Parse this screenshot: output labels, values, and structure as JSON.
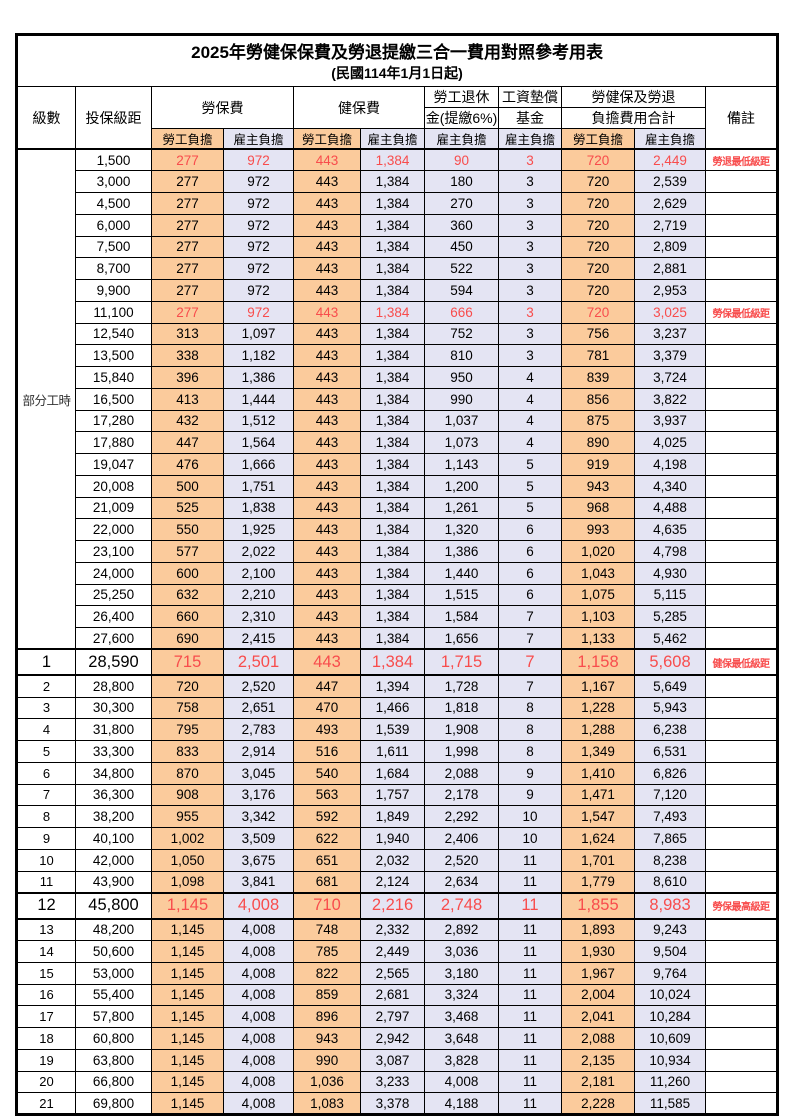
{
  "doc": {
    "title": "2025年勞健保保費及勞退提繳三合一費用對照參考用表",
    "subtitle": "(民國114年1月1日起)"
  },
  "colors": {
    "employee_column_bg": "#FBCB9C",
    "employer_column_bg": "#E4E4F3",
    "highlight_text": "#F84C4C",
    "border": "#000000"
  },
  "header": {
    "level": "級數",
    "bracket": "投保級距",
    "labor": "勞保費",
    "health": "健保費",
    "pension_line1": "勞工退休",
    "pension_line2": "金(提繳6%)",
    "wagefund_line1": "工資墊償",
    "wagefund_line2": "基金",
    "total_line1": "勞健保及勞退",
    "total_line2": "負擔費用合計",
    "note": "備註",
    "employee": "勞工負擔",
    "employer": "雇主負擔"
  },
  "group_label": "部分工時",
  "group_span": 23,
  "rows": [
    {
      "bracket": "1,500",
      "v": [
        "277",
        "972",
        "443",
        "1,384",
        "90",
        "3",
        "720",
        "2,449"
      ],
      "note": "勞退最低級距",
      "red": true,
      "tall": false
    },
    {
      "bracket": "3,000",
      "v": [
        "277",
        "972",
        "443",
        "1,384",
        "180",
        "3",
        "720",
        "2,539"
      ],
      "note": "",
      "red": false,
      "tall": false
    },
    {
      "bracket": "4,500",
      "v": [
        "277",
        "972",
        "443",
        "1,384",
        "270",
        "3",
        "720",
        "2,629"
      ],
      "note": "",
      "red": false,
      "tall": false
    },
    {
      "bracket": "6,000",
      "v": [
        "277",
        "972",
        "443",
        "1,384",
        "360",
        "3",
        "720",
        "2,719"
      ],
      "note": "",
      "red": false,
      "tall": false
    },
    {
      "bracket": "7,500",
      "v": [
        "277",
        "972",
        "443",
        "1,384",
        "450",
        "3",
        "720",
        "2,809"
      ],
      "note": "",
      "red": false,
      "tall": false
    },
    {
      "bracket": "8,700",
      "v": [
        "277",
        "972",
        "443",
        "1,384",
        "522",
        "3",
        "720",
        "2,881"
      ],
      "note": "",
      "red": false,
      "tall": false
    },
    {
      "bracket": "9,900",
      "v": [
        "277",
        "972",
        "443",
        "1,384",
        "594",
        "3",
        "720",
        "2,953"
      ],
      "note": "",
      "red": false,
      "tall": false
    },
    {
      "bracket": "11,100",
      "v": [
        "277",
        "972",
        "443",
        "1,384",
        "666",
        "3",
        "720",
        "3,025"
      ],
      "note": "勞保最低級距",
      "red": true,
      "tall": false
    },
    {
      "bracket": "12,540",
      "v": [
        "313",
        "1,097",
        "443",
        "1,384",
        "752",
        "3",
        "756",
        "3,237"
      ],
      "note": "",
      "red": false,
      "tall": false
    },
    {
      "bracket": "13,500",
      "v": [
        "338",
        "1,182",
        "443",
        "1,384",
        "810",
        "3",
        "781",
        "3,379"
      ],
      "note": "",
      "red": false,
      "tall": false
    },
    {
      "bracket": "15,840",
      "v": [
        "396",
        "1,386",
        "443",
        "1,384",
        "950",
        "4",
        "839",
        "3,724"
      ],
      "note": "",
      "red": false,
      "tall": false
    },
    {
      "bracket": "16,500",
      "v": [
        "413",
        "1,444",
        "443",
        "1,384",
        "990",
        "4",
        "856",
        "3,822"
      ],
      "note": "",
      "red": false,
      "tall": false
    },
    {
      "bracket": "17,280",
      "v": [
        "432",
        "1,512",
        "443",
        "1,384",
        "1,037",
        "4",
        "875",
        "3,937"
      ],
      "note": "",
      "red": false,
      "tall": false
    },
    {
      "bracket": "17,880",
      "v": [
        "447",
        "1,564",
        "443",
        "1,384",
        "1,073",
        "4",
        "890",
        "4,025"
      ],
      "note": "",
      "red": false,
      "tall": false
    },
    {
      "bracket": "19,047",
      "v": [
        "476",
        "1,666",
        "443",
        "1,384",
        "1,143",
        "5",
        "919",
        "4,198"
      ],
      "note": "",
      "red": false,
      "tall": false
    },
    {
      "bracket": "20,008",
      "v": [
        "500",
        "1,751",
        "443",
        "1,384",
        "1,200",
        "5",
        "943",
        "4,340"
      ],
      "note": "",
      "red": false,
      "tall": false
    },
    {
      "bracket": "21,009",
      "v": [
        "525",
        "1,838",
        "443",
        "1,384",
        "1,261",
        "5",
        "968",
        "4,488"
      ],
      "note": "",
      "red": false,
      "tall": false
    },
    {
      "bracket": "22,000",
      "v": [
        "550",
        "1,925",
        "443",
        "1,384",
        "1,320",
        "6",
        "993",
        "4,635"
      ],
      "note": "",
      "red": false,
      "tall": false
    },
    {
      "bracket": "23,100",
      "v": [
        "577",
        "2,022",
        "443",
        "1,384",
        "1,386",
        "6",
        "1,020",
        "4,798"
      ],
      "note": "",
      "red": false,
      "tall": false
    },
    {
      "bracket": "24,000",
      "v": [
        "600",
        "2,100",
        "443",
        "1,384",
        "1,440",
        "6",
        "1,043",
        "4,930"
      ],
      "note": "",
      "red": false,
      "tall": false
    },
    {
      "bracket": "25,250",
      "v": [
        "632",
        "2,210",
        "443",
        "1,384",
        "1,515",
        "6",
        "1,075",
        "5,115"
      ],
      "note": "",
      "red": false,
      "tall": false
    },
    {
      "bracket": "26,400",
      "v": [
        "660",
        "2,310",
        "443",
        "1,384",
        "1,584",
        "7",
        "1,103",
        "5,285"
      ],
      "note": "",
      "red": false,
      "tall": false
    },
    {
      "bracket": "27,600",
      "v": [
        "690",
        "2,415",
        "443",
        "1,384",
        "1,656",
        "7",
        "1,133",
        "5,462"
      ],
      "note": "",
      "red": false,
      "tall": false
    },
    {
      "level": "1",
      "bracket": "28,590",
      "v": [
        "715",
        "2,501",
        "443",
        "1,384",
        "1,715",
        "7",
        "1,158",
        "5,608"
      ],
      "note": "健保最低級距",
      "red": true,
      "tall": true
    },
    {
      "level": "2",
      "bracket": "28,800",
      "v": [
        "720",
        "2,520",
        "447",
        "1,394",
        "1,728",
        "7",
        "1,167",
        "5,649"
      ],
      "note": "",
      "red": false,
      "tall": false
    },
    {
      "level": "3",
      "bracket": "30,300",
      "v": [
        "758",
        "2,651",
        "470",
        "1,466",
        "1,818",
        "8",
        "1,228",
        "5,943"
      ],
      "note": "",
      "red": false,
      "tall": false
    },
    {
      "level": "4",
      "bracket": "31,800",
      "v": [
        "795",
        "2,783",
        "493",
        "1,539",
        "1,908",
        "8",
        "1,288",
        "6,238"
      ],
      "note": "",
      "red": false,
      "tall": false
    },
    {
      "level": "5",
      "bracket": "33,300",
      "v": [
        "833",
        "2,914",
        "516",
        "1,611",
        "1,998",
        "8",
        "1,349",
        "6,531"
      ],
      "note": "",
      "red": false,
      "tall": false
    },
    {
      "level": "6",
      "bracket": "34,800",
      "v": [
        "870",
        "3,045",
        "540",
        "1,684",
        "2,088",
        "9",
        "1,410",
        "6,826"
      ],
      "note": "",
      "red": false,
      "tall": false
    },
    {
      "level": "7",
      "bracket": "36,300",
      "v": [
        "908",
        "3,176",
        "563",
        "1,757",
        "2,178",
        "9",
        "1,471",
        "7,120"
      ],
      "note": "",
      "red": false,
      "tall": false
    },
    {
      "level": "8",
      "bracket": "38,200",
      "v": [
        "955",
        "3,342",
        "592",
        "1,849",
        "2,292",
        "10",
        "1,547",
        "7,493"
      ],
      "note": "",
      "red": false,
      "tall": false
    },
    {
      "level": "9",
      "bracket": "40,100",
      "v": [
        "1,002",
        "3,509",
        "622",
        "1,940",
        "2,406",
        "10",
        "1,624",
        "7,865"
      ],
      "note": "",
      "red": false,
      "tall": false
    },
    {
      "level": "10",
      "bracket": "42,000",
      "v": [
        "1,050",
        "3,675",
        "651",
        "2,032",
        "2,520",
        "11",
        "1,701",
        "8,238"
      ],
      "note": "",
      "red": false,
      "tall": false
    },
    {
      "level": "11",
      "bracket": "43,900",
      "v": [
        "1,098",
        "3,841",
        "681",
        "2,124",
        "2,634",
        "11",
        "1,779",
        "8,610"
      ],
      "note": "",
      "red": false,
      "tall": false
    },
    {
      "level": "12",
      "bracket": "45,800",
      "v": [
        "1,145",
        "4,008",
        "710",
        "2,216",
        "2,748",
        "11",
        "1,855",
        "8,983"
      ],
      "note": "勞保最高級距",
      "red": true,
      "tall": true
    },
    {
      "level": "13",
      "bracket": "48,200",
      "v": [
        "1,145",
        "4,008",
        "748",
        "2,332",
        "2,892",
        "11",
        "1,893",
        "9,243"
      ],
      "note": "",
      "red": false,
      "tall": false
    },
    {
      "level": "14",
      "bracket": "50,600",
      "v": [
        "1,145",
        "4,008",
        "785",
        "2,449",
        "3,036",
        "11",
        "1,930",
        "9,504"
      ],
      "note": "",
      "red": false,
      "tall": false
    },
    {
      "level": "15",
      "bracket": "53,000",
      "v": [
        "1,145",
        "4,008",
        "822",
        "2,565",
        "3,180",
        "11",
        "1,967",
        "9,764"
      ],
      "note": "",
      "red": false,
      "tall": false
    },
    {
      "level": "16",
      "bracket": "55,400",
      "v": [
        "1,145",
        "4,008",
        "859",
        "2,681",
        "3,324",
        "11",
        "2,004",
        "10,024"
      ],
      "note": "",
      "red": false,
      "tall": false
    },
    {
      "level": "17",
      "bracket": "57,800",
      "v": [
        "1,145",
        "4,008",
        "896",
        "2,797",
        "3,468",
        "11",
        "2,041",
        "10,284"
      ],
      "note": "",
      "red": false,
      "tall": false
    },
    {
      "level": "18",
      "bracket": "60,800",
      "v": [
        "1,145",
        "4,008",
        "943",
        "2,942",
        "3,648",
        "11",
        "2,088",
        "10,609"
      ],
      "note": "",
      "red": false,
      "tall": false
    },
    {
      "level": "19",
      "bracket": "63,800",
      "v": [
        "1,145",
        "4,008",
        "990",
        "3,087",
        "3,828",
        "11",
        "2,135",
        "10,934"
      ],
      "note": "",
      "red": false,
      "tall": false
    },
    {
      "level": "20",
      "bracket": "66,800",
      "v": [
        "1,145",
        "4,008",
        "1,036",
        "3,233",
        "4,008",
        "11",
        "2,181",
        "11,260"
      ],
      "note": "",
      "red": false,
      "tall": false
    },
    {
      "level": "21",
      "bracket": "69,800",
      "v": [
        "1,145",
        "4,008",
        "1,083",
        "3,378",
        "4,188",
        "11",
        "2,228",
        "11,585"
      ],
      "note": "",
      "red": false,
      "tall": false
    }
  ]
}
